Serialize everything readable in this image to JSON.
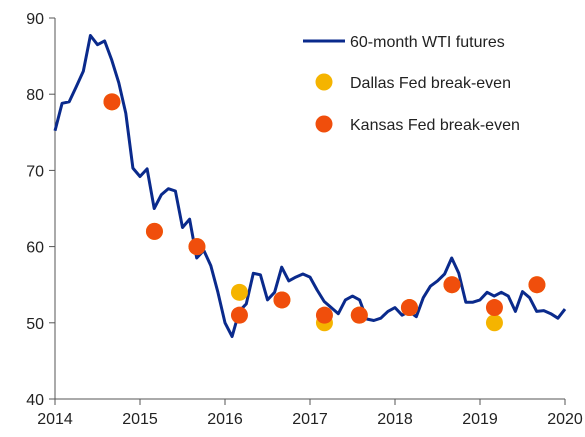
{
  "chart_data": {
    "type": "line",
    "title": "",
    "xlabel": "",
    "ylabel": "",
    "xlim": [
      2014.0,
      2020.0
    ],
    "ylim": [
      40,
      90
    ],
    "grid": false,
    "legend_position": "top-right",
    "x_ticks": [
      "2014",
      "2015",
      "2016",
      "2017",
      "2018",
      "2019",
      "2020"
    ],
    "y_ticks": [
      "40",
      "50",
      "60",
      "70",
      "80",
      "90"
    ],
    "series": [
      {
        "name": "60-month WTI futures",
        "type": "line",
        "color": "#0a2a8c",
        "x": [
          2014.0,
          2014.083,
          2014.167,
          2014.25,
          2014.333,
          2014.417,
          2014.5,
          2014.583,
          2014.667,
          2014.75,
          2014.833,
          2014.917,
          2015.0,
          2015.083,
          2015.167,
          2015.25,
          2015.333,
          2015.417,
          2015.5,
          2015.583,
          2015.667,
          2015.75,
          2015.833,
          2015.917,
          2016.0,
          2016.083,
          2016.167,
          2016.25,
          2016.333,
          2016.417,
          2016.5,
          2016.583,
          2016.667,
          2016.75,
          2016.833,
          2016.917,
          2017.0,
          2017.083,
          2017.167,
          2017.25,
          2017.333,
          2017.417,
          2017.5,
          2017.583,
          2017.667,
          2017.75,
          2017.833,
          2017.917,
          2018.0,
          2018.083,
          2018.167,
          2018.25,
          2018.333,
          2018.417,
          2018.5,
          2018.583,
          2018.667,
          2018.75,
          2018.833,
          2018.917,
          2019.0,
          2019.083,
          2019.167,
          2019.25,
          2019.333,
          2019.417,
          2019.5,
          2019.583,
          2019.667,
          2019.75,
          2019.833,
          2019.917,
          2020.0
        ],
        "values": [
          75.2,
          78.8,
          79.0,
          81.0,
          83.0,
          87.7,
          86.5,
          87.0,
          84.5,
          81.5,
          77.5,
          70.3,
          69.2,
          70.2,
          65.0,
          66.8,
          67.6,
          67.3,
          62.5,
          63.6,
          58.5,
          59.5,
          57.5,
          54.0,
          50.0,
          48.2,
          51.5,
          52.5,
          56.5,
          56.3,
          53.0,
          54.0,
          57.3,
          55.5,
          56.0,
          56.4,
          56.0,
          54.3,
          52.8,
          52.0,
          51.2,
          53.0,
          53.5,
          53.0,
          50.5,
          50.3,
          50.6,
          51.5,
          52.0,
          51.0,
          51.5,
          50.8,
          53.3,
          54.8,
          55.5,
          56.4,
          58.5,
          56.5,
          52.7,
          52.7,
          53.0,
          54.0,
          53.5,
          54.0,
          53.5,
          51.5,
          54.1,
          53.3,
          51.5,
          51.6,
          51.2,
          50.6,
          51.8
        ]
      },
      {
        "name": "Dallas Fed break-even",
        "type": "scatter",
        "color": "#f5b400",
        "x": [
          2014.67,
          2015.17,
          2015.67,
          2016.17,
          2016.67,
          2017.17,
          2017.58,
          2018.17,
          2018.67,
          2019.17,
          2019.67
        ],
        "values": [
          79,
          62,
          60,
          54,
          53,
          50,
          51,
          52,
          55,
          50,
          55
        ]
      },
      {
        "name": "Kansas Fed break-even",
        "type": "scatter",
        "color": "#f04e0c",
        "x": [
          2014.67,
          2015.17,
          2015.67,
          2016.17,
          2016.67,
          2017.17,
          2017.58,
          2018.17,
          2018.67,
          2019.17,
          2019.67
        ],
        "values": [
          79,
          62,
          60,
          51,
          53,
          51,
          51,
          52,
          55,
          52,
          55
        ]
      }
    ]
  }
}
